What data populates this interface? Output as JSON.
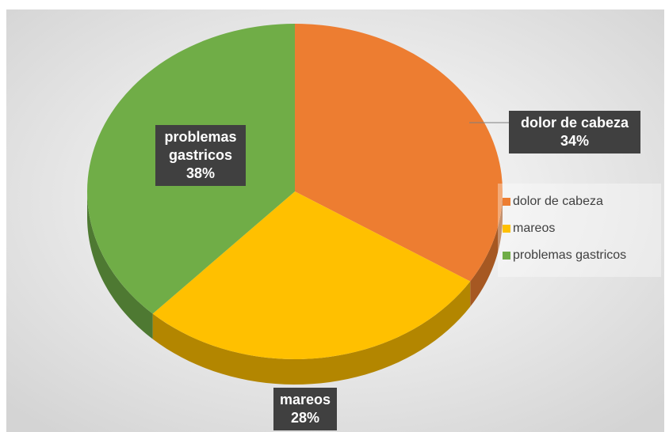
{
  "chart_data": {
    "type": "pie",
    "categories": [
      "dolor de cabeza",
      "mareos",
      "problemas gastricos"
    ],
    "values": [
      34,
      28,
      38
    ],
    "value_labels": [
      "34%",
      "28%",
      "38%"
    ],
    "colors": [
      "#ed7d31",
      "#ffc000",
      "#70ad47"
    ],
    "legend": "right"
  }
}
